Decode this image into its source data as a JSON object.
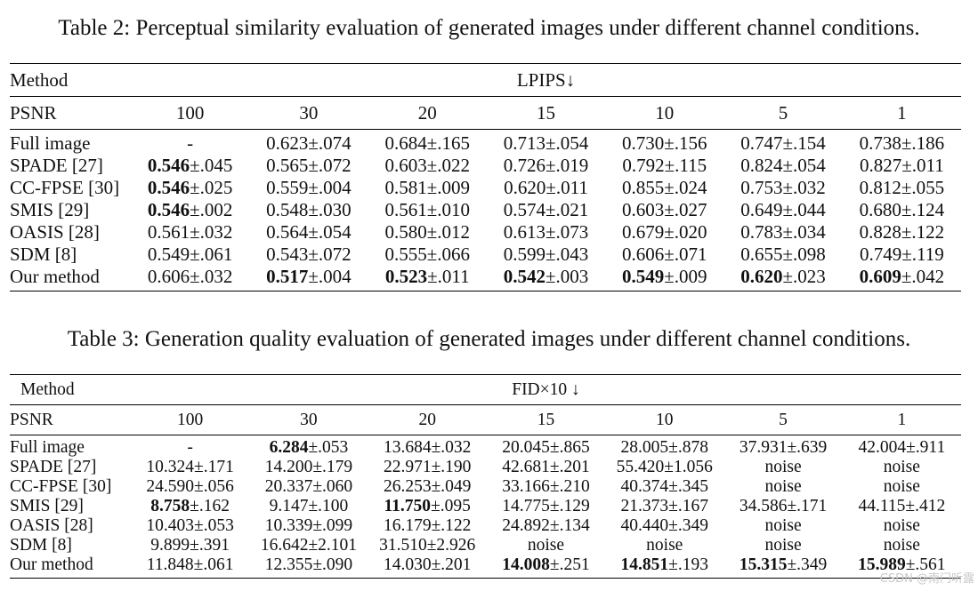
{
  "table2": {
    "caption": "Table 2: Perceptual similarity evaluation of generated images under different channel conditions.",
    "method_header": "Method",
    "metric_header": "LPIPS↓",
    "psnr_label": "PSNR",
    "psnr_values": [
      "100",
      "30",
      "20",
      "15",
      "10",
      "5",
      "1"
    ],
    "rows": [
      {
        "method": "Full image",
        "cells": [
          {
            "main": "-",
            "err": ""
          },
          {
            "main": "0.623",
            "err": "±.074"
          },
          {
            "main": "0.684",
            "err": "±.165"
          },
          {
            "main": "0.713",
            "err": "±.054"
          },
          {
            "main": "0.730",
            "err": "±.156"
          },
          {
            "main": "0.747",
            "err": "±.154"
          },
          {
            "main": "0.738",
            "err": "±.186"
          }
        ]
      },
      {
        "method": "SPADE [27]",
        "cells": [
          {
            "main": "0.546",
            "err": "±.045",
            "bold": true
          },
          {
            "main": "0.565",
            "err": "±.072"
          },
          {
            "main": "0.603",
            "err": "±.022"
          },
          {
            "main": "0.726",
            "err": "±.019"
          },
          {
            "main": "0.792",
            "err": "±.115"
          },
          {
            "main": "0.824",
            "err": "±.054"
          },
          {
            "main": "0.827",
            "err": "±.011"
          }
        ]
      },
      {
        "method": "CC-FPSE [30]",
        "cells": [
          {
            "main": "0.546",
            "err": "±.025",
            "bold": true
          },
          {
            "main": "0.559",
            "err": "±.004"
          },
          {
            "main": "0.581",
            "err": "±.009"
          },
          {
            "main": "0.620",
            "err": "±.011"
          },
          {
            "main": "0.855",
            "err": "±.024"
          },
          {
            "main": "0.753",
            "err": "±.032"
          },
          {
            "main": "0.812",
            "err": "±.055"
          }
        ]
      },
      {
        "method": "SMIS [29]",
        "cells": [
          {
            "main": "0.546",
            "err": "±.002",
            "bold": true
          },
          {
            "main": "0.548",
            "err": "±.030"
          },
          {
            "main": "0.561",
            "err": "±.010"
          },
          {
            "main": "0.574",
            "err": "±.021"
          },
          {
            "main": "0.603",
            "err": "±.027"
          },
          {
            "main": "0.649",
            "err": "±.044"
          },
          {
            "main": "0.680",
            "err": "±.124"
          }
        ]
      },
      {
        "method": "OASIS [28]",
        "cells": [
          {
            "main": "0.561",
            "err": "±.032"
          },
          {
            "main": "0.564",
            "err": "±.054"
          },
          {
            "main": "0.580",
            "err": "±.012"
          },
          {
            "main": "0.613",
            "err": "±.073"
          },
          {
            "main": "0.679",
            "err": "±.020"
          },
          {
            "main": "0.783",
            "err": "±.034"
          },
          {
            "main": "0.828",
            "err": "±.122"
          }
        ]
      },
      {
        "method": "SDM [8]",
        "cells": [
          {
            "main": "0.549",
            "err": "±.061"
          },
          {
            "main": "0.543",
            "err": "±.072"
          },
          {
            "main": "0.555",
            "err": "±.066"
          },
          {
            "main": "0.599",
            "err": "±.043"
          },
          {
            "main": "0.606",
            "err": "±.071"
          },
          {
            "main": "0.655",
            "err": "±.098"
          },
          {
            "main": "0.749",
            "err": "±.119"
          }
        ]
      },
      {
        "method": "Our method",
        "cells": [
          {
            "main": "0.606",
            "err": "±.032"
          },
          {
            "main": "0.517",
            "err": "±.004",
            "bold": true
          },
          {
            "main": "0.523",
            "err": "±.011",
            "bold": true
          },
          {
            "main": "0.542",
            "err": "±.003",
            "bold": true
          },
          {
            "main": "0.549",
            "err": "±.009",
            "bold": true
          },
          {
            "main": "0.620",
            "err": "±.023",
            "bold": true
          },
          {
            "main": "0.609",
            "err": "±.042",
            "bold": true
          }
        ]
      }
    ]
  },
  "table3": {
    "caption": "Table 3: Generation quality evaluation of generated images under different channel conditions.",
    "method_header": "Method",
    "metric_header": "FID×10 ↓",
    "psnr_label": "PSNR",
    "psnr_values": [
      "100",
      "30",
      "20",
      "15",
      "10",
      "5",
      "1"
    ],
    "rows": [
      {
        "method": "Full image",
        "cells": [
          {
            "main": "-",
            "err": ""
          },
          {
            "main": "6.284",
            "err": "±.053",
            "bold": true
          },
          {
            "main": "13.684",
            "err": "±.032"
          },
          {
            "main": "20.045",
            "err": "±.865"
          },
          {
            "main": "28.005",
            "err": "±.878"
          },
          {
            "main": "37.931",
            "err": "±.639"
          },
          {
            "main": "42.004",
            "err": "±.911"
          }
        ]
      },
      {
        "method": "SPADE [27]",
        "cells": [
          {
            "main": "10.324",
            "err": "±.171"
          },
          {
            "main": "14.200",
            "err": "±.179"
          },
          {
            "main": "22.971",
            "err": "±.190"
          },
          {
            "main": "42.681",
            "err": "±.201"
          },
          {
            "main": "55.420",
            "err": "±1.056"
          },
          {
            "main": "noise",
            "err": ""
          },
          {
            "main": "noise",
            "err": ""
          }
        ]
      },
      {
        "method": "CC-FPSE [30]",
        "cells": [
          {
            "main": "24.590",
            "err": "±.056"
          },
          {
            "main": "20.337",
            "err": "±.060"
          },
          {
            "main": "26.253",
            "err": "±.049"
          },
          {
            "main": "33.166",
            "err": "±.210"
          },
          {
            "main": "40.374",
            "err": "±.345"
          },
          {
            "main": "noise",
            "err": ""
          },
          {
            "main": "noise",
            "err": ""
          }
        ]
      },
      {
        "method": "SMIS [29]",
        "cells": [
          {
            "main": "8.758",
            "err": "±.162",
            "bold": true
          },
          {
            "main": "9.147",
            "err": "±.100"
          },
          {
            "main": "11.750",
            "err": "±.095",
            "bold": true
          },
          {
            "main": "14.775",
            "err": "±.129"
          },
          {
            "main": "21.373",
            "err": "±.167"
          },
          {
            "main": "34.586",
            "err": "±.171"
          },
          {
            "main": "44.115",
            "err": "±.412"
          }
        ]
      },
      {
        "method": "OASIS [28]",
        "cells": [
          {
            "main": "10.403",
            "err": "±.053"
          },
          {
            "main": "10.339",
            "err": "±.099"
          },
          {
            "main": "16.179",
            "err": "±.122"
          },
          {
            "main": "24.892",
            "err": "±.134"
          },
          {
            "main": "40.440",
            "err": "±.349"
          },
          {
            "main": "noise",
            "err": ""
          },
          {
            "main": "noise",
            "err": ""
          }
        ]
      },
      {
        "method": "SDM [8]",
        "cells": [
          {
            "main": "9.899",
            "err": "±.391"
          },
          {
            "main": "16.642",
            "err": "±2.101"
          },
          {
            "main": "31.510",
            "err": "±2.926"
          },
          {
            "main": "noise",
            "err": ""
          },
          {
            "main": "noise",
            "err": ""
          },
          {
            "main": "noise",
            "err": ""
          },
          {
            "main": "noise",
            "err": ""
          }
        ]
      },
      {
        "method": "Our method",
        "cells": [
          {
            "main": "11.848",
            "err": "±.061"
          },
          {
            "main": "12.355",
            "err": "±.090"
          },
          {
            "main": "14.030",
            "err": "±.201"
          },
          {
            "main": "14.008",
            "err": "±.251",
            "bold": true
          },
          {
            "main": "14.851",
            "err": "±.193",
            "bold": true
          },
          {
            "main": "15.315",
            "err": "±.349",
            "bold": true
          },
          {
            "main": "15.989",
            "err": "±.561",
            "bold": true
          }
        ]
      }
    ]
  },
  "watermark": "CSDN @南门听露"
}
